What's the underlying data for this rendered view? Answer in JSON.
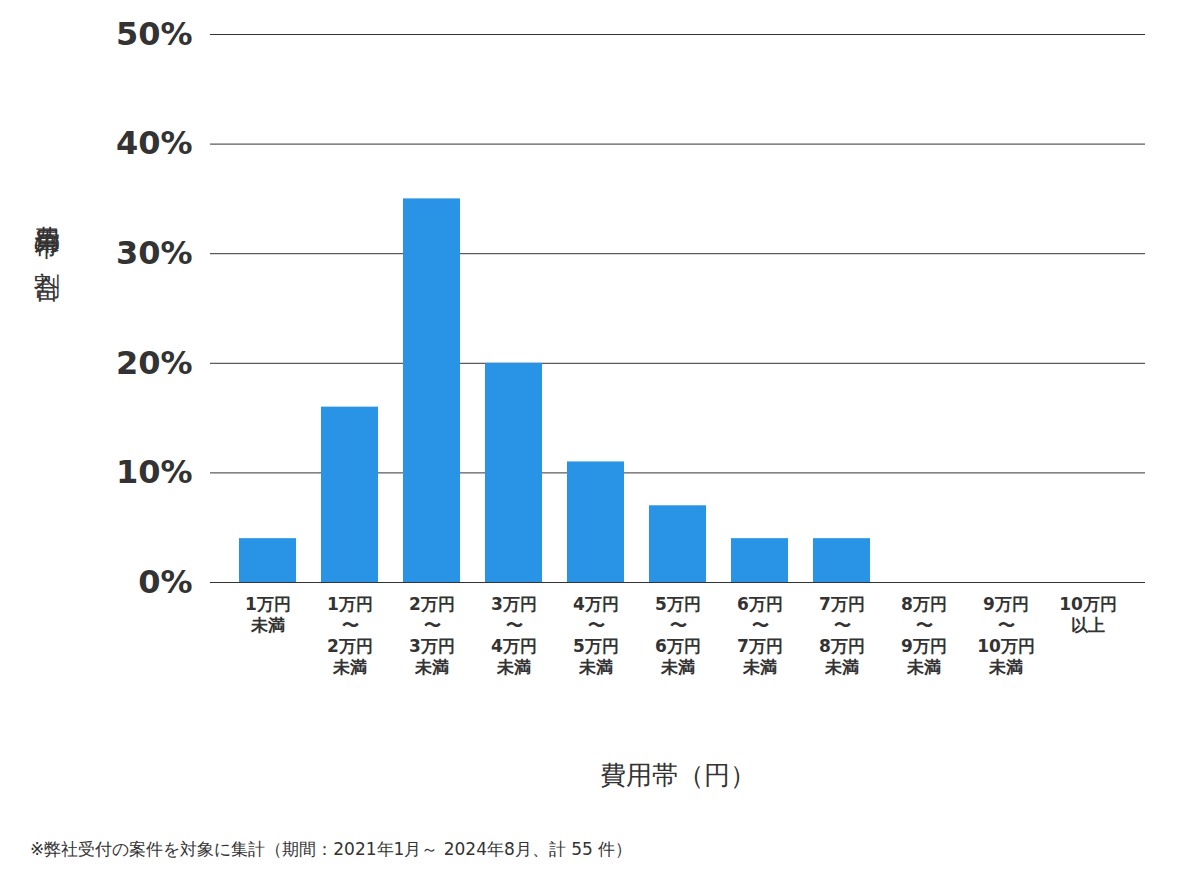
{
  "chart_data": {
    "type": "bar",
    "categories": [
      "1万円\n未満",
      "1万円\n〜\n2万円\n未満",
      "2万円\n〜\n3万円\n未満",
      "3万円\n〜\n4万円\n未満",
      "4万円\n〜\n5万円\n未満",
      "5万円\n〜\n6万円\n未満",
      "6万円\n〜\n7万円\n未満",
      "7万円\n〜\n8万円\n未満",
      "8万円\n〜\n9万円\n未満",
      "9万円\n〜\n10万円\n未満",
      "10万円\n以上"
    ],
    "values": [
      4,
      16,
      35,
      20,
      11,
      7,
      4,
      4,
      0,
      0,
      0
    ],
    "color": "#2993e5",
    "x_label": "費用帯（円）",
    "y_label": "費用帯の割合",
    "caption": "※弊社受付の案件を対象に集計（期間：2021年1月～ 2024年8月、計 55 件）",
    "ylim": [
      0,
      50
    ],
    "yticks": [
      {
        "value": 0,
        "label": "0%"
      },
      {
        "value": 10,
        "label": "10%"
      },
      {
        "value": 20,
        "label": "20%"
      },
      {
        "value": 30,
        "label": "30%"
      },
      {
        "value": 40,
        "label": "40%"
      },
      {
        "value": 50,
        "label": "50%"
      }
    ],
    "grid": true
  }
}
